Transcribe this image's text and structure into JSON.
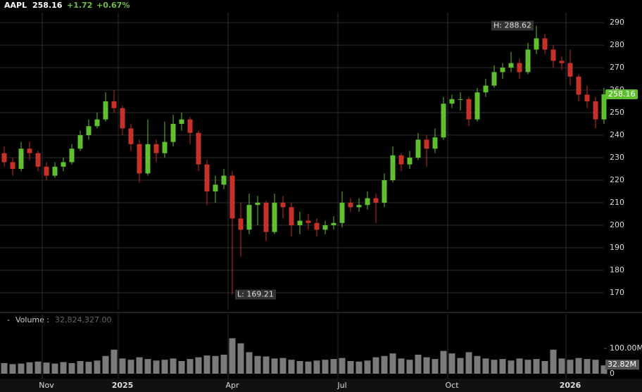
{
  "header": {
    "ticker": "AAPL",
    "price": "258.16",
    "change": "+1.72",
    "change_pct": "+0.67%"
  },
  "chart_data": {
    "type": "candlestick",
    "categories": [
      null,
      null,
      null,
      null,
      null,
      "Nov",
      null,
      null,
      null,
      null,
      null,
      null,
      null,
      null,
      "2025",
      null,
      null,
      null,
      null,
      null,
      null,
      null,
      null,
      null,
      null,
      null,
      null,
      "Apr",
      null,
      null,
      null,
      null,
      null,
      null,
      null,
      null,
      null,
      null,
      null,
      null,
      "Jul",
      null,
      null,
      null,
      null,
      null,
      null,
      null,
      null,
      null,
      null,
      null,
      null,
      "Oct",
      null,
      null,
      null,
      null,
      null,
      null,
      null,
      null,
      null,
      null,
      null,
      null,
      null,
      "2026",
      null,
      null,
      null,
      null
    ],
    "open": [
      232,
      228,
      225,
      234,
      232,
      226,
      222,
      226,
      228,
      234,
      240,
      244,
      247,
      255,
      252,
      243,
      236,
      223,
      236,
      232,
      237,
      245,
      247,
      241,
      227,
      215,
      218,
      222,
      203,
      198,
      209,
      210,
      197,
      210,
      208,
      200,
      202,
      201,
      198,
      200,
      201,
      210,
      208,
      209,
      212,
      210,
      220,
      231,
      227,
      230,
      238,
      234,
      239,
      254,
      256,
      256,
      247,
      259,
      262,
      268,
      270,
      272,
      268,
      278,
      283,
      278,
      273,
      272,
      266,
      258,
      255,
      247
    ],
    "high": [
      235,
      230,
      237,
      237,
      233,
      228,
      228,
      230,
      236,
      242,
      247,
      250,
      259,
      260,
      253,
      245,
      238,
      247,
      238,
      246,
      249,
      250,
      248,
      242,
      229,
      222,
      225,
      224,
      210,
      214,
      213,
      211,
      214,
      213,
      210,
      206,
      205,
      203,
      202,
      204,
      215,
      212,
      212,
      215,
      214,
      223,
      235,
      232,
      233,
      241,
      240,
      243,
      257,
      258,
      259,
      257,
      261,
      265,
      271,
      272,
      277,
      274,
      281,
      288.62,
      285,
      280,
      275,
      278,
      267,
      262,
      257,
      261
    ],
    "low": [
      226,
      222,
      224,
      229,
      224,
      220,
      221,
      224,
      227,
      233,
      238,
      243,
      246,
      250,
      240,
      233,
      219,
      222,
      228,
      230,
      235,
      242,
      236,
      224,
      209,
      210,
      216,
      169.21,
      186,
      196,
      200,
      193,
      196,
      203,
      195,
      196,
      198,
      195,
      196,
      198,
      199,
      206,
      206,
      207,
      201,
      208,
      219,
      224,
      225,
      229,
      226,
      232,
      238,
      252,
      251,
      244,
      246,
      257,
      261,
      265,
      268,
      265,
      267,
      276,
      276,
      270,
      269,
      262,
      255,
      252,
      243,
      245
    ],
    "close": [
      228,
      225,
      234,
      232,
      226,
      222,
      226,
      228,
      234,
      240,
      244,
      247,
      255,
      252,
      243,
      236,
      223,
      236,
      232,
      237,
      245,
      247,
      241,
      227,
      215,
      218,
      222,
      203,
      198,
      209,
      210,
      197,
      210,
      208,
      200,
      202,
      201,
      198,
      200,
      201,
      210,
      208,
      209,
      212,
      210,
      220,
      231,
      227,
      230,
      238,
      234,
      239,
      254,
      256,
      256,
      247,
      259,
      262,
      268,
      270,
      272,
      268,
      278,
      283,
      278,
      273,
      272,
      266,
      258,
      255,
      247,
      258.16
    ],
    "up_color": "#5fbf2f",
    "down_color": "#c8302a",
    "ylim": [
      162.5,
      294.4
    ],
    "yticks": [
      170,
      180,
      190,
      200,
      210,
      220,
      230,
      240,
      250,
      260,
      270,
      280,
      290
    ],
    "grid": true,
    "high_label": "H: 288.62",
    "low_label": "L: 169.21",
    "volume": {
      "title": "Volume :",
      "readout": "32,824,327.00",
      "tag": "32.82M",
      "color": "#7a7a7a",
      "values": [
        42,
        38,
        40,
        45,
        48,
        44,
        40,
        46,
        42,
        50,
        47,
        52,
        70,
        95,
        60,
        55,
        65,
        58,
        52,
        55,
        60,
        50,
        58,
        65,
        72,
        70,
        75,
        140,
        120,
        85,
        70,
        68,
        60,
        62,
        55,
        50,
        48,
        52,
        55,
        58,
        62,
        50,
        48,
        52,
        65,
        70,
        80,
        60,
        55,
        75,
        65,
        58,
        90,
        80,
        62,
        85,
        70,
        60,
        55,
        58,
        52,
        60,
        55,
        58,
        50,
        95,
        60,
        55,
        62,
        58,
        55,
        32.824327
      ],
      "ylim": [
        0,
        200
      ],
      "yticks": [
        0,
        {
          "value": 100,
          "label": "100.00M"
        }
      ]
    }
  }
}
